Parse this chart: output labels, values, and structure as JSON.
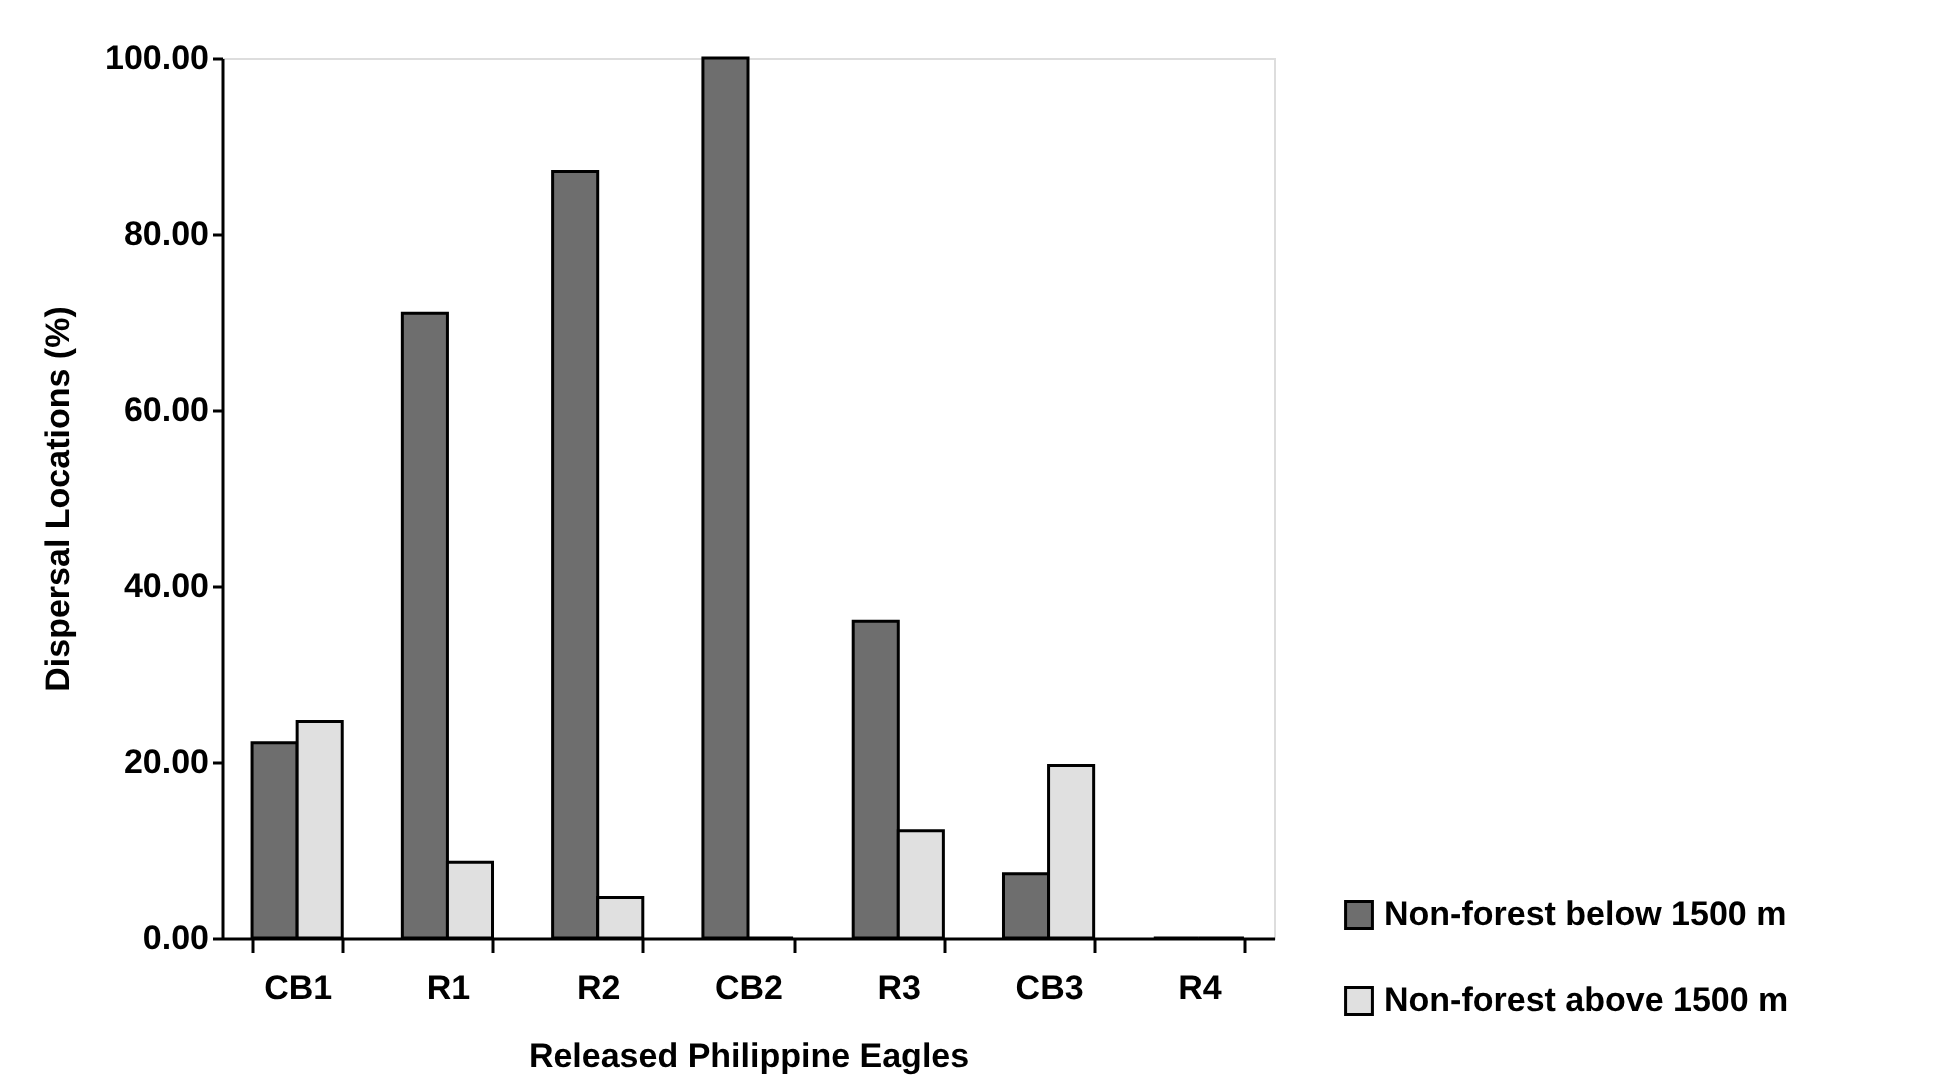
{
  "chart_data": {
    "type": "bar",
    "xlabel": "Released Philippine Eagles",
    "ylabel": "Dispersal Locations (%)",
    "categories": [
      "CB1",
      "R1",
      "R2",
      "CB2",
      "R3",
      "CB3",
      "R4"
    ],
    "series": [
      {
        "name": "Non-forest below 1500 m",
        "color": "#6e6e6e",
        "values": [
          22.2,
          71.0,
          87.1,
          100.0,
          36.0,
          7.3,
          0
        ]
      },
      {
        "name": "Non-forest above 1500 m",
        "color": "#e0e0e0",
        "values": [
          24.6,
          8.6,
          4.6,
          0,
          12.2,
          19.6,
          0
        ]
      }
    ],
    "ylim": [
      0,
      100
    ],
    "yticks": [
      {
        "value": 0,
        "label": "0.00"
      },
      {
        "value": 20,
        "label": "20.00"
      },
      {
        "value": 40,
        "label": "40.00"
      },
      {
        "value": 60,
        "label": "60.00"
      },
      {
        "value": 80,
        "label": "80.00"
      },
      {
        "value": 100,
        "label": "100.00"
      }
    ],
    "grid": false,
    "legend": "right"
  }
}
